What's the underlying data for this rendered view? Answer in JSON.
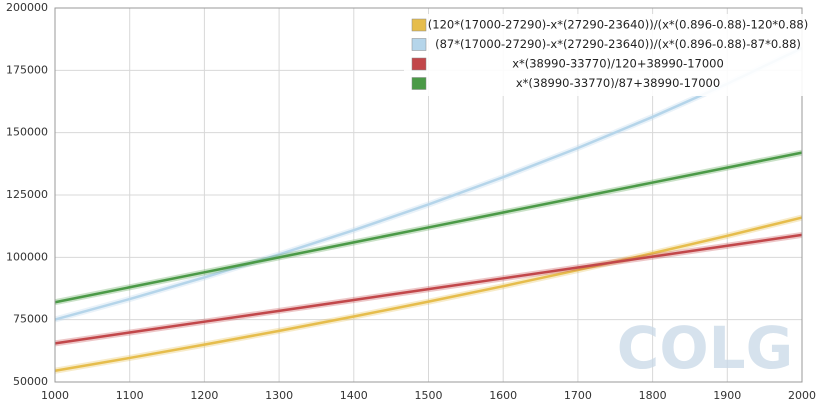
{
  "chart_data": {
    "type": "line",
    "x": [
      1000,
      1100,
      1200,
      1300,
      1400,
      1500,
      1600,
      1700,
      1800,
      1900,
      2000
    ],
    "series": [
      {
        "name": "(120*(17000-27290)-x*(27290-23640))/(x*(0.896-0.88)-120*0.88)",
        "color": "#e6bd4c",
        "values": [
          54518,
          59657,
          64986,
          70517,
          76260,
          82228,
          88435,
          94895,
          101625,
          108641,
          115962
        ]
      },
      {
        "name": "(87*(17000-27290)-x*(27290-23640))/(x*(0.896-0.88)-87*0.88)",
        "color": "#b5d5ea",
        "values": [
          75053,
          83281,
          91967,
          101152,
          110879,
          121199,
          132167,
          143846,
          156307,
          169632,
          183915
        ]
      },
      {
        "name": "x*(38990-33770)/120+38990-17000",
        "color": "#c2474a",
        "values": [
          65490,
          69840,
          74190,
          78540,
          82890,
          87240,
          91590,
          95940,
          100290,
          104640,
          108990
        ]
      },
      {
        "name": "x*(38990-33770)/87+38990-17000",
        "color": "#4b9a47",
        "values": [
          81990,
          87990,
          93990,
          99990,
          105990,
          111990,
          117990,
          123990,
          129990,
          135990,
          141990
        ]
      }
    ],
    "xlim": [
      1000,
      2000
    ],
    "xticks": [
      1000,
      1100,
      1200,
      1300,
      1400,
      1500,
      1600,
      1700,
      1800,
      1900,
      2000
    ],
    "ylim": [
      50000,
      200000
    ],
    "yticks": [
      50000,
      75000,
      100000,
      125000,
      150000,
      175000,
      200000
    ],
    "grid": true,
    "legend": "top-right",
    "watermark": "COLG"
  }
}
